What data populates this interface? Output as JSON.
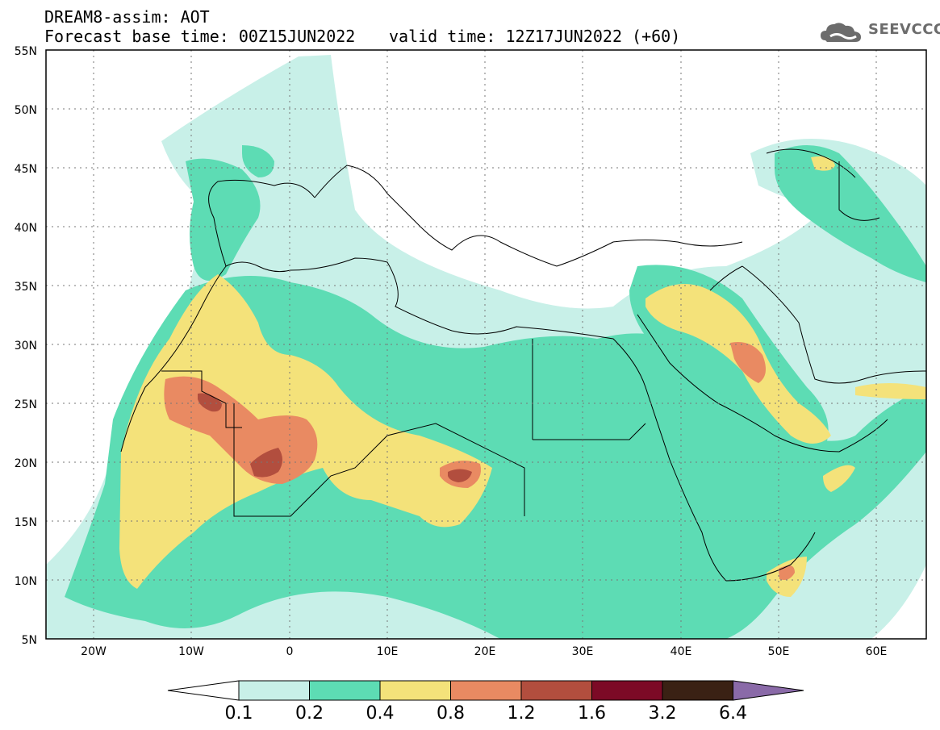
{
  "header": {
    "title": "DREAM8-assim: AOT",
    "base_time": "Forecast base time: 00Z15JUN2022",
    "valid_time": "valid time: 12Z17JUN2022 (+60)"
  },
  "logo": {
    "text": "SEEVCCC",
    "icon": "cloud-icon"
  },
  "map": {
    "extent": {
      "lon_min": -25,
      "lon_max": 65,
      "lat_min": 5,
      "lat_max": 55
    },
    "lat_labels": [
      "55N",
      "50N",
      "45N",
      "40N",
      "35N",
      "30N",
      "25N",
      "20N",
      "15N",
      "10N",
      "5N"
    ],
    "lon_labels": [
      "20W",
      "10W",
      "0",
      "10E",
      "20E",
      "30E",
      "40E",
      "50E",
      "60E"
    ],
    "variable": "AOT"
  },
  "colorbar": {
    "labels": [
      "0.1",
      "0.2",
      "0.4",
      "0.8",
      "1.2",
      "1.6",
      "3.2",
      "6.4"
    ],
    "colors": [
      "#c8f0e8",
      "#5ddcb4",
      "#f4e27a",
      "#e98a62",
      "#b24e3e",
      "#7c0a26",
      "#3a2114",
      "#8a6aa8"
    ]
  },
  "palette": {
    "c1": "#c8f0e8",
    "c2": "#5ddcb4",
    "c3": "#f4e27a",
    "c4": "#e98a62",
    "c5": "#b24e3e",
    "c6": "#7c0a26"
  }
}
